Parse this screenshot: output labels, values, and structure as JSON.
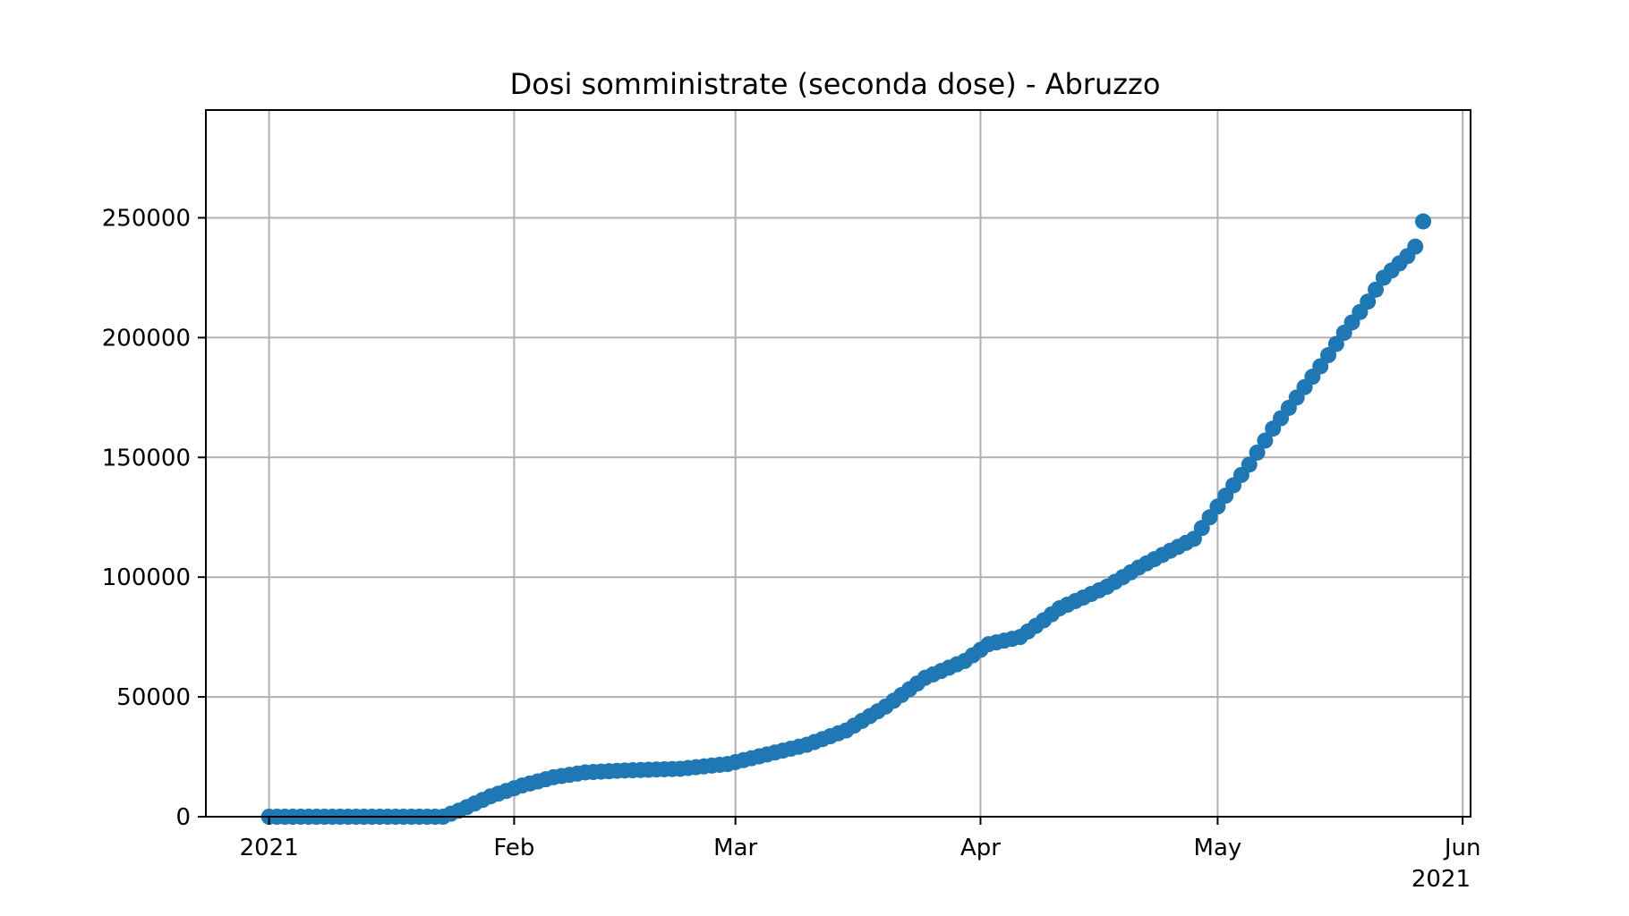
{
  "chart_data": {
    "type": "scatter",
    "title": "Dosi somministrate (seconda dose) - Abruzzo",
    "xlabel": "",
    "ylabel": "",
    "x_range": [
      "2020-12-24",
      "2021-06-02"
    ],
    "ylim": [
      0,
      295000
    ],
    "grid": true,
    "marker_color": "#1f77b4",
    "x_ticks": [
      {
        "date": "2021-01-01",
        "label": "2021"
      },
      {
        "date": "2021-02-01",
        "label": "Feb"
      },
      {
        "date": "2021-03-01",
        "label": "Mar"
      },
      {
        "date": "2021-04-01",
        "label": "Apr"
      },
      {
        "date": "2021-05-01",
        "label": "May"
      },
      {
        "date": "2021-06-01",
        "label": "Jun"
      }
    ],
    "x_offset_label": "2021",
    "y_ticks": [
      0,
      50000,
      100000,
      150000,
      200000,
      250000
    ],
    "key_points": [
      {
        "date": "2021-01-01",
        "value": 0
      },
      {
        "date": "2021-01-23",
        "value": 0
      },
      {
        "date": "2021-01-25",
        "value": 2500
      },
      {
        "date": "2021-01-29",
        "value": 8500
      },
      {
        "date": "2021-02-02",
        "value": 13000
      },
      {
        "date": "2021-02-06",
        "value": 16500
      },
      {
        "date": "2021-02-10",
        "value": 18500
      },
      {
        "date": "2021-02-15",
        "value": 19300
      },
      {
        "date": "2021-02-22",
        "value": 20000
      },
      {
        "date": "2021-02-28",
        "value": 22000
      },
      {
        "date": "2021-03-05",
        "value": 26000
      },
      {
        "date": "2021-03-10",
        "value": 30000
      },
      {
        "date": "2021-03-15",
        "value": 36000
      },
      {
        "date": "2021-03-20",
        "value": 46000
      },
      {
        "date": "2021-03-25",
        "value": 58000
      },
      {
        "date": "2021-03-30",
        "value": 65000
      },
      {
        "date": "2021-04-02",
        "value": 72000
      },
      {
        "date": "2021-04-06",
        "value": 75000
      },
      {
        "date": "2021-04-09",
        "value": 82000
      },
      {
        "date": "2021-04-11",
        "value": 87000
      },
      {
        "date": "2021-04-17",
        "value": 96000
      },
      {
        "date": "2021-04-21",
        "value": 104000
      },
      {
        "date": "2021-04-25",
        "value": 111000
      },
      {
        "date": "2021-04-28",
        "value": 116000
      },
      {
        "date": "2021-04-30",
        "value": 125000
      },
      {
        "date": "2021-05-02",
        "value": 134000
      },
      {
        "date": "2021-05-05",
        "value": 147000
      },
      {
        "date": "2021-05-08",
        "value": 162000
      },
      {
        "date": "2021-05-11",
        "value": 175000
      },
      {
        "date": "2021-05-14",
        "value": 188000
      },
      {
        "date": "2021-05-17",
        "value": 202000
      },
      {
        "date": "2021-05-20",
        "value": 215000
      },
      {
        "date": "2021-05-22",
        "value": 225000
      },
      {
        "date": "2021-05-25",
        "value": 234000
      },
      {
        "date": "2021-05-26",
        "value": 238000
      },
      {
        "date": "2021-05-27",
        "value": 248500
      }
    ]
  }
}
